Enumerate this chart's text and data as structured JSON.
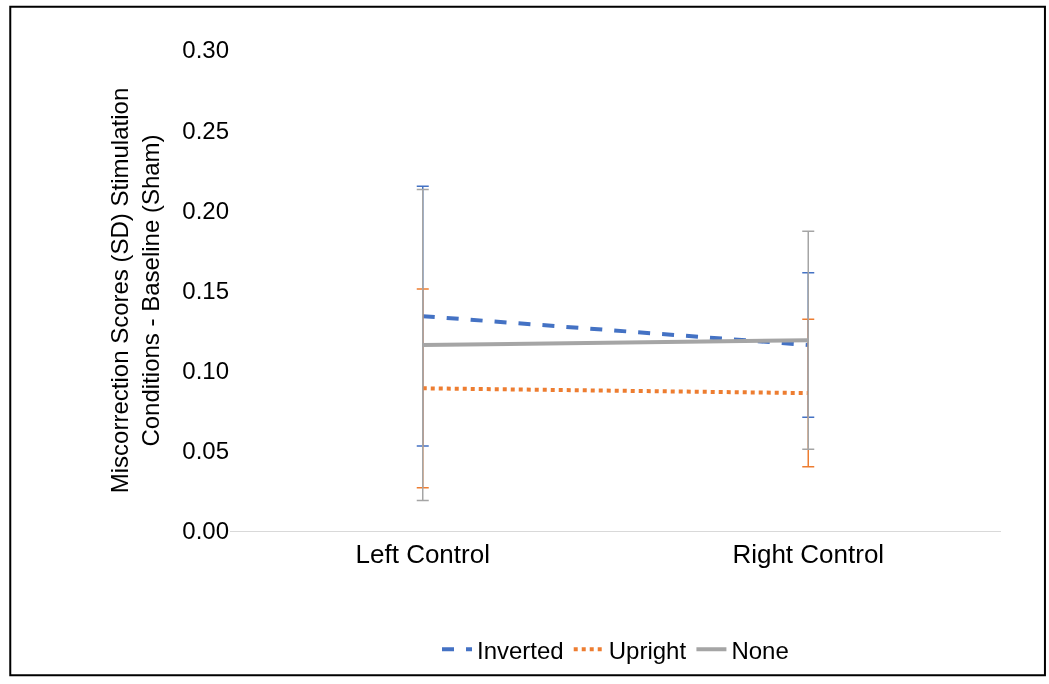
{
  "chart_data": {
    "type": "line",
    "ylabel": "Miscorrection Scores (SD) Stimulation Conditions - Baseline (Sham)",
    "categories": [
      "Left Control",
      "Right Control"
    ],
    "series": [
      {
        "name": "Inverted",
        "color": "#4472c4",
        "values": [
          0.134,
          0.116
        ],
        "errors": [
          0.081,
          0.045
        ],
        "line_style": "dashed"
      },
      {
        "name": "Upright",
        "color": "#ed7d31",
        "values": [
          0.089,
          0.086
        ],
        "errors": [
          0.062,
          0.046
        ],
        "line_style": "dotted"
      },
      {
        "name": "None",
        "color": "#a5a5a5",
        "values": [
          0.116,
          0.119
        ],
        "errors": [
          0.097,
          0.068
        ],
        "line_style": "solid"
      }
    ],
    "ylim": [
      0,
      0.3
    ],
    "yticks": [
      {
        "value": 0,
        "label": "0.00"
      },
      {
        "value": 0.05,
        "label": "0.05"
      },
      {
        "value": 0.1,
        "label": "0.10"
      },
      {
        "value": 0.15,
        "label": "0.15"
      },
      {
        "value": 0.2,
        "label": "0.20"
      },
      {
        "value": 0.25,
        "label": "0.25"
      },
      {
        "value": 0.3,
        "label": "0.30"
      }
    ],
    "grid": false,
    "legend": "bottom",
    "marker": "none"
  }
}
